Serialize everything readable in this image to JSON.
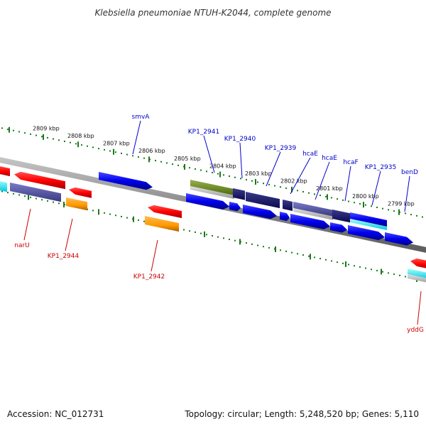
{
  "title": "Klebsiella pneumoniae NTUH-K2044, complete genome",
  "footer": {
    "accession": "Accession: NC_012731",
    "topology": "Topology: circular; Length: 5,248,520 bp; Genes: 5,110"
  },
  "colors": {
    "background": "#ffffff",
    "backbone": "#8c8c8c",
    "tick_dots": "#1b7a1b",
    "label_blue": "#0000cc",
    "label_red": "#cc0000"
  },
  "scale_ticks": [
    "2809 kbp",
    "2808 kbp",
    "2807 kbp",
    "2806 kbp",
    "2805 kbp",
    "2804 kbp",
    "2803 kbp",
    "2802 kbp",
    "2801 kbp",
    "2800 kbp",
    "2799 kbp"
  ],
  "labels_top": [
    "smvA",
    "KP1_2941",
    "KP1_2940",
    "KP1_2939",
    "hcaE",
    "hcaE",
    "hcaF",
    "KP1_2935",
    "benD"
  ],
  "labels_bottom": [
    "narU",
    "KP1_2944",
    "KP1_2942",
    "yddG"
  ]
}
